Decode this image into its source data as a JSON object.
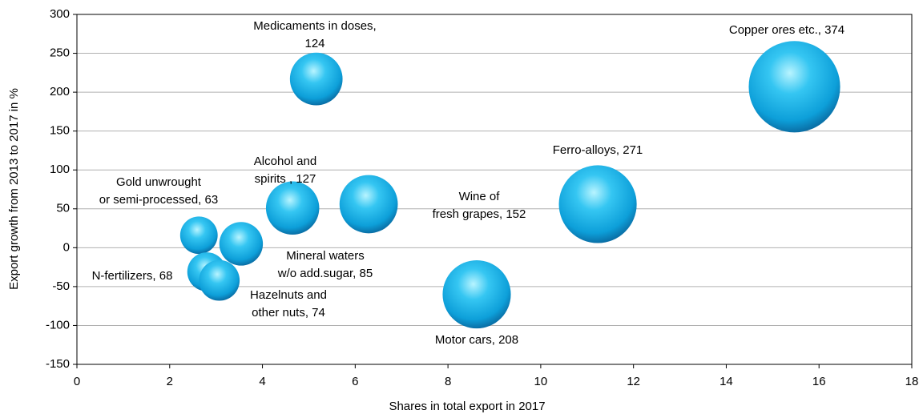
{
  "chart_data": {
    "type": "bubble",
    "xlabel": "Shares in total export in 2017",
    "ylabel": "Export growth from 2013 to 2017 in %",
    "xlim": [
      0,
      18
    ],
    "xticks": [
      0,
      2,
      4,
      6,
      8,
      10,
      12,
      14,
      16,
      18
    ],
    "ylim": [
      -150,
      300
    ],
    "yticks": [
      -150,
      -100,
      -50,
      0,
      50,
      100,
      150,
      200,
      250,
      300
    ],
    "grid": true,
    "color": "#1aa9e0",
    "x": [
      15.47,
      5.16,
      11.23,
      6.29,
      4.65,
      8.62,
      2.63,
      3.54,
      2.8,
      3.07
    ],
    "y": [
      207,
      217,
      56,
      56,
      51,
      -60,
      16,
      5,
      -31,
      -42
    ],
    "size": [
      374,
      124,
      271,
      152,
      127,
      208,
      63,
      85,
      68,
      74
    ],
    "labels": [
      "Copper ores etc., 374",
      "Medicaments in doses,\n124",
      "Ferro-alloys, 271",
      "Wine of\nfresh grapes, 152",
      "Alcohol and\nspirits , 127",
      "Motor cars, 208",
      "Gold unwrought\nor semi-processed, 63",
      "Mineral waters\nw/o add.sugar, 85",
      "N-fertilizers, 68",
      "Hazelnuts and\nother nuts, 74"
    ]
  }
}
